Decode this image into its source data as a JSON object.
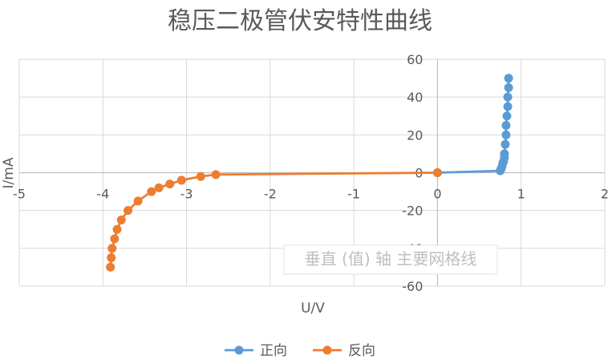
{
  "chart_data": {
    "type": "scatter",
    "title": "稳压二极管伏安特性曲线",
    "xlabel": "U/V",
    "ylabel": "I/mA",
    "xlim": [
      -5,
      2
    ],
    "ylim": [
      -60,
      60
    ],
    "xticks": [
      -5,
      -4,
      -3,
      -2,
      -1,
      0,
      1,
      2
    ],
    "yticks": [
      -60,
      -40,
      -20,
      0,
      20,
      40,
      60
    ],
    "grid": true,
    "legend": "bottom",
    "series": [
      {
        "name": "正向",
        "color": "#5b9bd5",
        "x": [
          0,
          0.75,
          0.76,
          0.77,
          0.78,
          0.79,
          0.8,
          0.8,
          0.81,
          0.82,
          0.82,
          0.83,
          0.84,
          0.84,
          0.85,
          0.85
        ],
        "y": [
          0,
          1,
          2,
          3,
          5,
          6,
          8,
          10,
          15,
          20,
          25,
          30,
          35,
          40,
          45,
          50
        ]
      },
      {
        "name": "反向",
        "color": "#ed7d31",
        "x": [
          0,
          -2.65,
          -2.83,
          -3.06,
          -3.2,
          -3.33,
          -3.42,
          -3.58,
          -3.7,
          -3.78,
          -3.83,
          -3.86,
          -3.89,
          -3.9
        ],
        "y": [
          0,
          -1,
          -2,
          -4,
          -6,
          -8,
          -10,
          -15,
          -20,
          -25,
          -30,
          -35,
          -40,
          -45
        ]
      }
    ],
    "series_extra_points": [
      {
        "series": 1,
        "x": -3.91,
        "y": -50
      }
    ]
  },
  "watermark": "垂直 (值) 轴 主要网格线"
}
